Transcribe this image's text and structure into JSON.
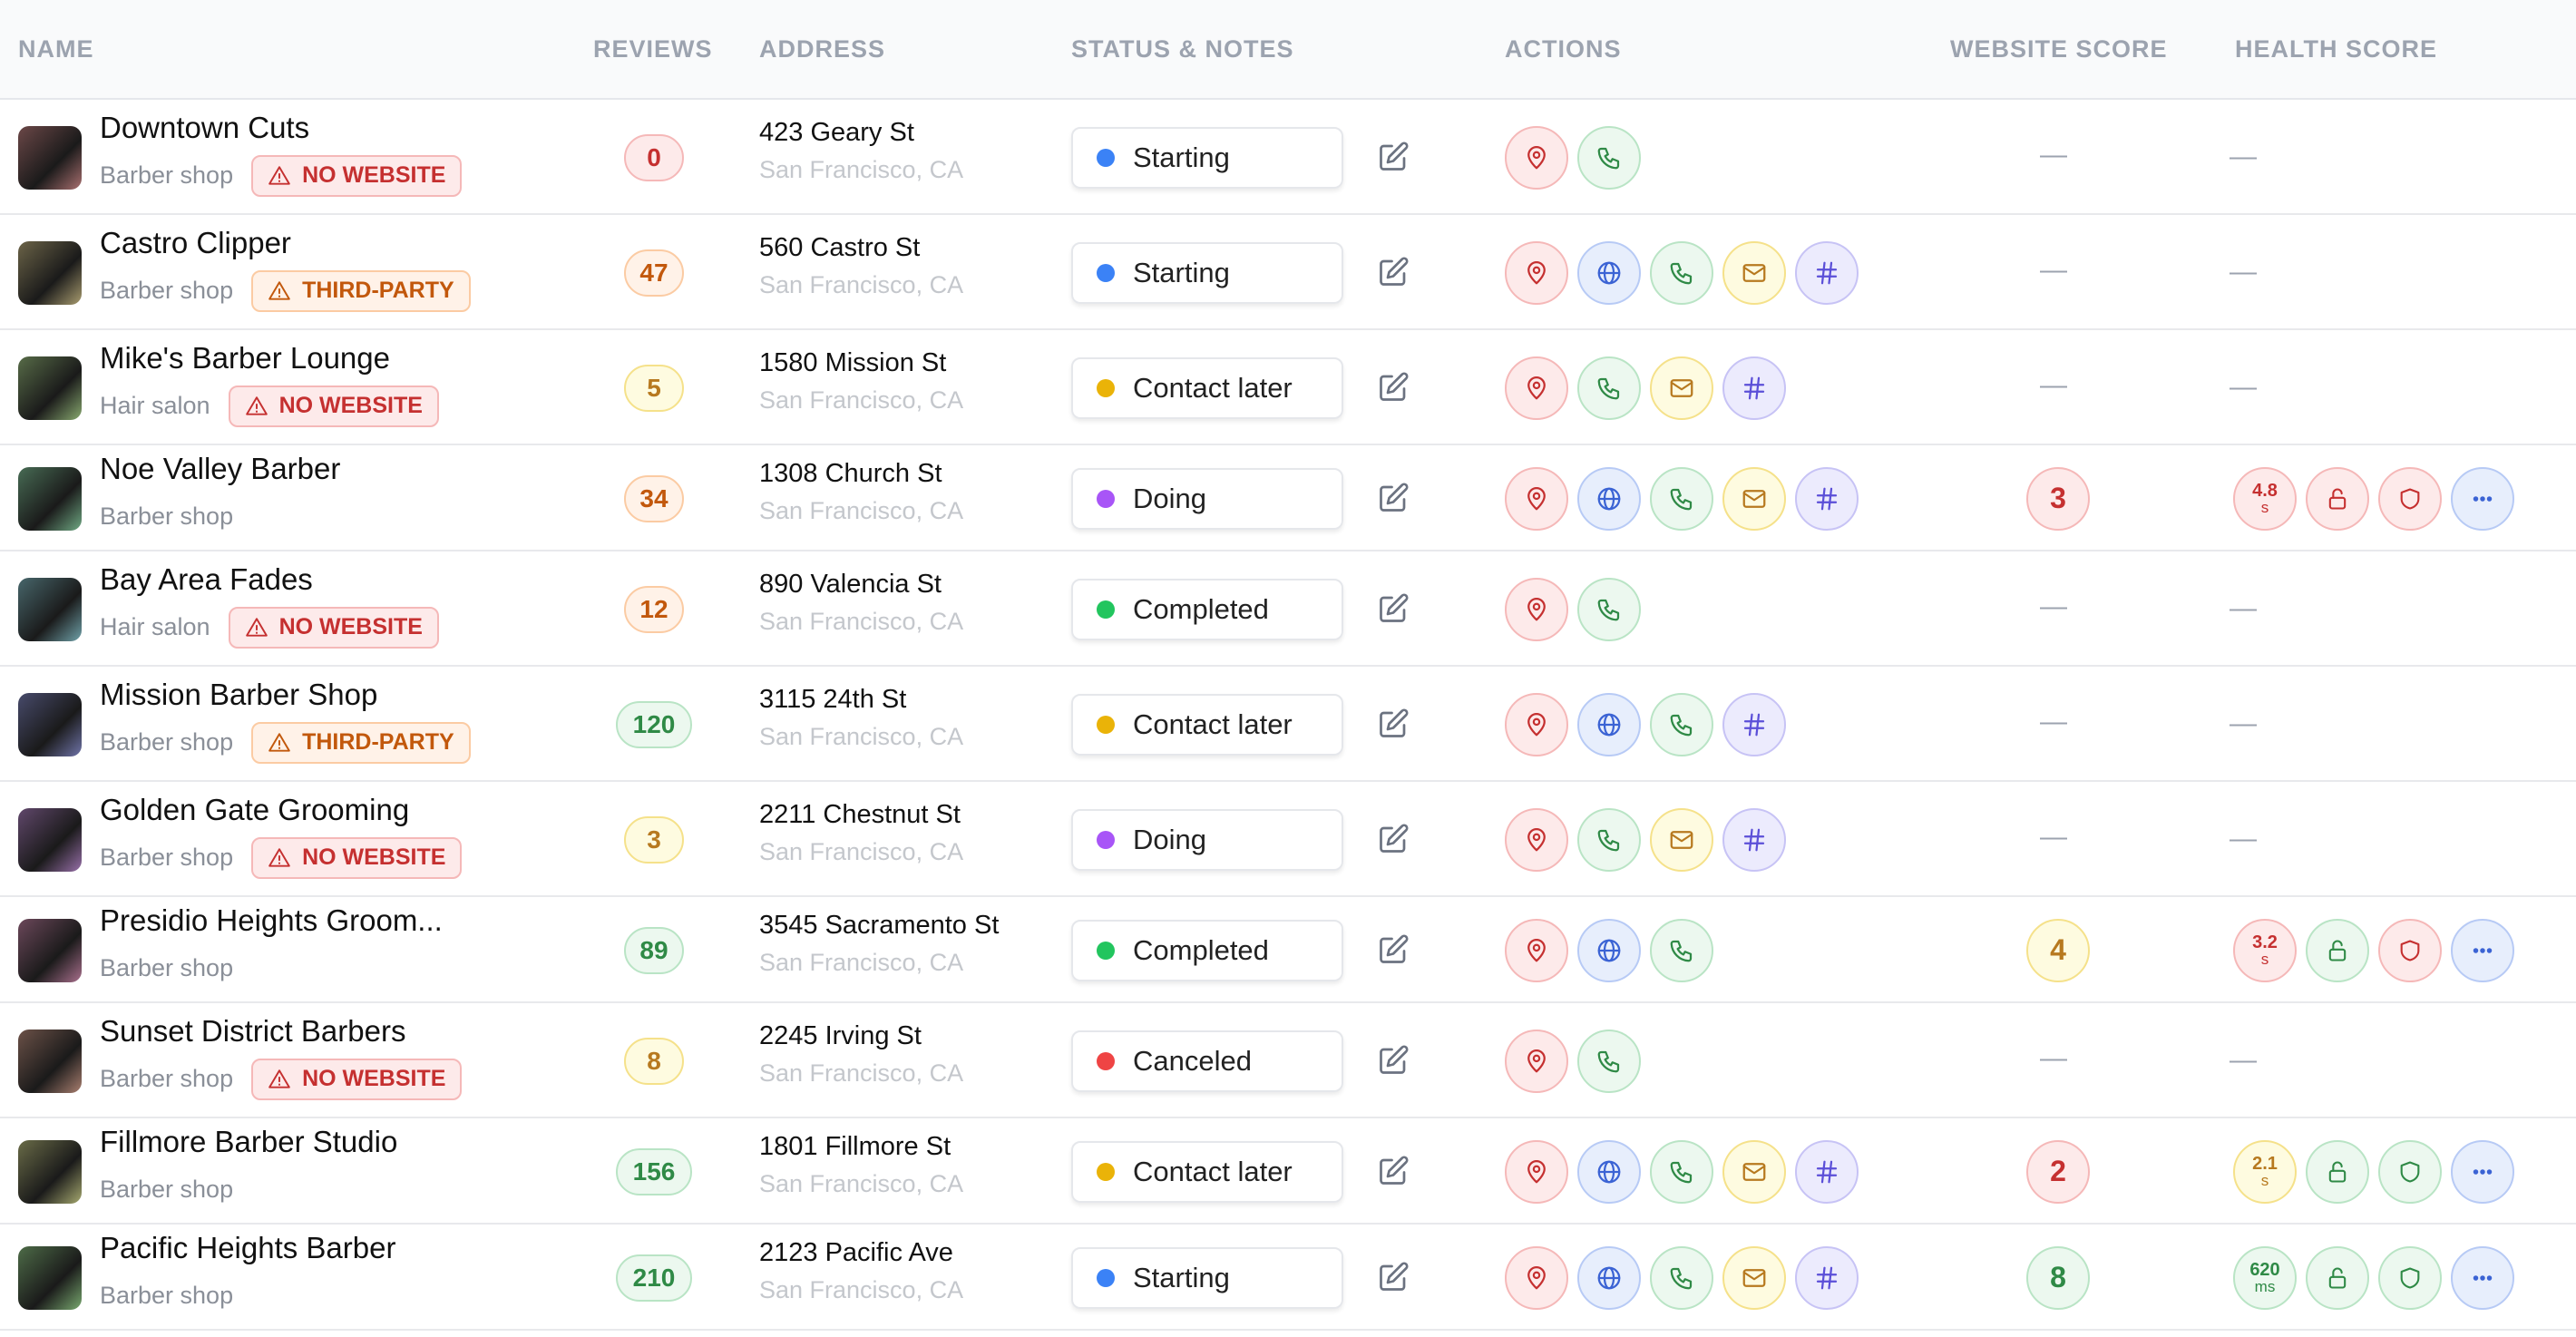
{
  "header": {
    "columns": [
      "NAME",
      "REVIEWS",
      "ADDRESS",
      "STATUS & NOTES",
      "ACTIONS",
      "WEBSITE SCORE",
      "HEALTH SCORE"
    ]
  },
  "rows": [
    {
      "name": "Downtown Cuts",
      "category": "Barber shop",
      "badge": {
        "label": "NO WEBSITE",
        "tone": "red"
      },
      "reviews": 0,
      "reviews_tone": "red",
      "address": "423 Geary St",
      "city": "San Francisco, CA",
      "status": "Starting",
      "status_color": "#3b82f6",
      "actions": [
        "map",
        "phone"
      ],
      "website_score": "—",
      "health": "—"
    },
    {
      "name": "Castro Clipper",
      "category": "Barber shop",
      "badge": {
        "label": "THIRD-PARTY",
        "tone": "orange"
      },
      "reviews": 47,
      "reviews_tone": "orange",
      "address": "560 Castro St",
      "city": "San Francisco, CA",
      "status": "Starting",
      "status_color": "#3b82f6",
      "actions": [
        "map",
        "web",
        "phone",
        "mail",
        "hash"
      ],
      "website_score": "—",
      "health": "—"
    },
    {
      "name": "Mike's Barber Lounge",
      "category": "Hair salon",
      "badge": {
        "label": "NO WEBSITE",
        "tone": "red"
      },
      "reviews": 5,
      "reviews_tone": "yellow",
      "address": "1580 Mission St",
      "city": "San Francisco, CA",
      "status": "Contact later",
      "status_color": "#eab308",
      "actions": [
        "map",
        "phone",
        "mail",
        "hash"
      ],
      "website_score": "—",
      "health": "—"
    },
    {
      "name": "Noe Valley Barber",
      "category": "Barber shop",
      "reviews": 34,
      "reviews_tone": "orange",
      "address": "1308 Church St",
      "city": "San Francisco, CA",
      "status": "Doing",
      "status_color": "#a855f7",
      "actions": [
        "map",
        "web",
        "phone",
        "mail",
        "hash"
      ],
      "website_score": {
        "value": 3,
        "tone": "red"
      },
      "health": {
        "perf": {
          "value": 4.8,
          "unit": "s",
          "tone": "red"
        },
        "lock": "red",
        "shield": "red"
      }
    },
    {
      "name": "Bay Area Fades",
      "category": "Hair salon",
      "badge": {
        "label": "NO WEBSITE",
        "tone": "red"
      },
      "reviews": 12,
      "reviews_tone": "orange",
      "address": "890 Valencia St",
      "city": "San Francisco, CA",
      "status": "Completed",
      "status_color": "#22c55e",
      "actions": [
        "map",
        "phone"
      ],
      "website_score": "—",
      "health": "—"
    },
    {
      "name": "Mission Barber Shop",
      "category": "Barber shop",
      "badge": {
        "label": "THIRD-PARTY",
        "tone": "orange"
      },
      "reviews": 120,
      "reviews_tone": "green",
      "address": "3115 24th St",
      "city": "San Francisco, CA",
      "status": "Contact later",
      "status_color": "#eab308",
      "actions": [
        "map",
        "web",
        "phone",
        "hash"
      ],
      "website_score": "—",
      "health": "—"
    },
    {
      "name": "Golden Gate Grooming",
      "category": "Barber shop",
      "badge": {
        "label": "NO WEBSITE",
        "tone": "red"
      },
      "reviews": 3,
      "reviews_tone": "yellow",
      "address": "2211 Chestnut St",
      "city": "San Francisco, CA",
      "status": "Doing",
      "status_color": "#a855f7",
      "actions": [
        "map",
        "phone",
        "mail",
        "hash"
      ],
      "website_score": "—",
      "health": "—"
    },
    {
      "name": "Presidio Heights Groom...",
      "category": "Barber shop",
      "reviews": 89,
      "reviews_tone": "green",
      "address": "3545 Sacramento St",
      "city": "San Francisco, CA",
      "status": "Completed",
      "status_color": "#22c55e",
      "actions": [
        "map",
        "web",
        "phone"
      ],
      "website_score": {
        "value": 4,
        "tone": "yellow"
      },
      "health": {
        "perf": {
          "value": 3.2,
          "unit": "s",
          "tone": "red"
        },
        "lock": "green",
        "shield": "red"
      }
    },
    {
      "name": "Sunset District Barbers",
      "category": "Barber shop",
      "badge": {
        "label": "NO WEBSITE",
        "tone": "red"
      },
      "reviews": 8,
      "reviews_tone": "yellow",
      "address": "2245 Irving St",
      "city": "San Francisco, CA",
      "status": "Canceled",
      "status_color": "#ef4444",
      "actions": [
        "map",
        "phone"
      ],
      "website_score": "—",
      "health": "—"
    },
    {
      "name": "Fillmore Barber Studio",
      "category": "Barber shop",
      "reviews": 156,
      "reviews_tone": "green",
      "address": "1801 Fillmore St",
      "city": "San Francisco, CA",
      "status": "Contact later",
      "status_color": "#eab308",
      "actions": [
        "map",
        "web",
        "phone",
        "mail",
        "hash"
      ],
      "website_score": {
        "value": 2,
        "tone": "red"
      },
      "health": {
        "perf": {
          "value": 2.1,
          "unit": "s",
          "tone": "yellow"
        },
        "lock": "green",
        "shield": "green"
      }
    },
    {
      "name": "Pacific Heights Barber",
      "category": "Barber shop",
      "reviews": 210,
      "reviews_tone": "green",
      "address": "2123 Pacific Ave",
      "city": "San Francisco, CA",
      "status": "Starting",
      "status_color": "#3b82f6",
      "actions": [
        "map",
        "web",
        "phone",
        "mail",
        "hash"
      ],
      "website_score": {
        "value": 8,
        "tone": "green"
      },
      "health": {
        "perf": {
          "value": 620,
          "unit": "ms",
          "tone": "green"
        },
        "lock": "green",
        "shield": "green"
      }
    }
  ]
}
